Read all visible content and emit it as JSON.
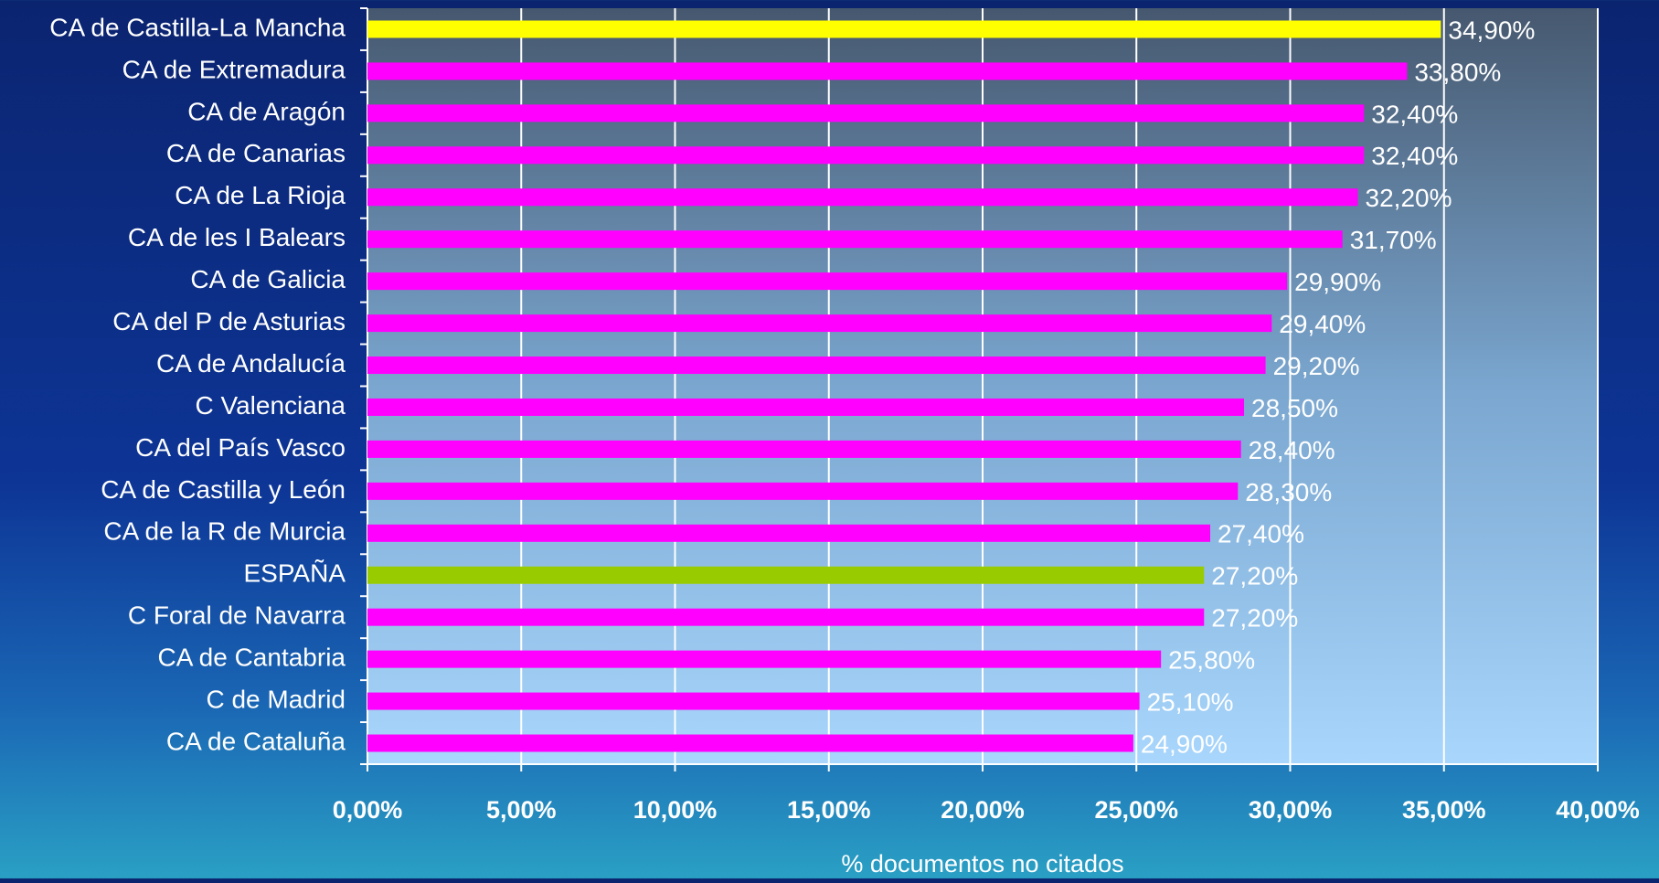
{
  "chart_data": {
    "type": "bar",
    "orientation": "horizontal",
    "x_label": "% documentos no citados",
    "categories": [
      "CA de Castilla-La Mancha",
      "CA de Extremadura",
      "CA de Aragón",
      "CA de Canarias",
      "CA de La Rioja",
      "CA de les I Balears",
      "CA de Galicia",
      "CA del P de Asturias",
      "CA de Andalucía",
      "C Valenciana",
      "CA del País Vasco",
      "CA de Castilla y León",
      "CA de la R de Murcia",
      "ESPAÑA",
      "C Foral de Navarra",
      "CA de Cantabria",
      "C de Madrid",
      "CA de Cataluña"
    ],
    "values": [
      34.9,
      33.8,
      32.4,
      32.4,
      32.2,
      31.7,
      29.9,
      29.4,
      29.2,
      28.5,
      28.4,
      28.3,
      27.4,
      27.2,
      27.2,
      25.8,
      25.1,
      24.9
    ],
    "value_labels": [
      "34,90%",
      "33,80%",
      "32,40%",
      "32,40%",
      "32,20%",
      "31,70%",
      "29,90%",
      "29,40%",
      "29,20%",
      "28,50%",
      "28,40%",
      "28,30%",
      "27,40%",
      "27,20%",
      "27,20%",
      "25,80%",
      "25,10%",
      "24,90%"
    ],
    "colors": [
      "#ffff00",
      "#ff00ff",
      "#ff00ff",
      "#ff00ff",
      "#ff00ff",
      "#ff00ff",
      "#ff00ff",
      "#ff00ff",
      "#ff00ff",
      "#ff00ff",
      "#ff00ff",
      "#ff00ff",
      "#ff00ff",
      "#99cc00",
      "#ff00ff",
      "#ff00ff",
      "#ff00ff",
      "#ff00ff"
    ],
    "xlim": [
      0,
      40
    ],
    "xticks": [
      {
        "value": 0,
        "label": "0,00%"
      },
      {
        "value": 5,
        "label": "5,00%"
      },
      {
        "value": 10,
        "label": "10,00%"
      },
      {
        "value": 15,
        "label": "15,00%"
      },
      {
        "value": 20,
        "label": "20,00%"
      },
      {
        "value": 25,
        "label": "25,00%"
      },
      {
        "value": 30,
        "label": "30,00%"
      },
      {
        "value": 35,
        "label": "35,00%"
      },
      {
        "value": 40,
        "label": "40,00%"
      }
    ],
    "grid": true
  }
}
